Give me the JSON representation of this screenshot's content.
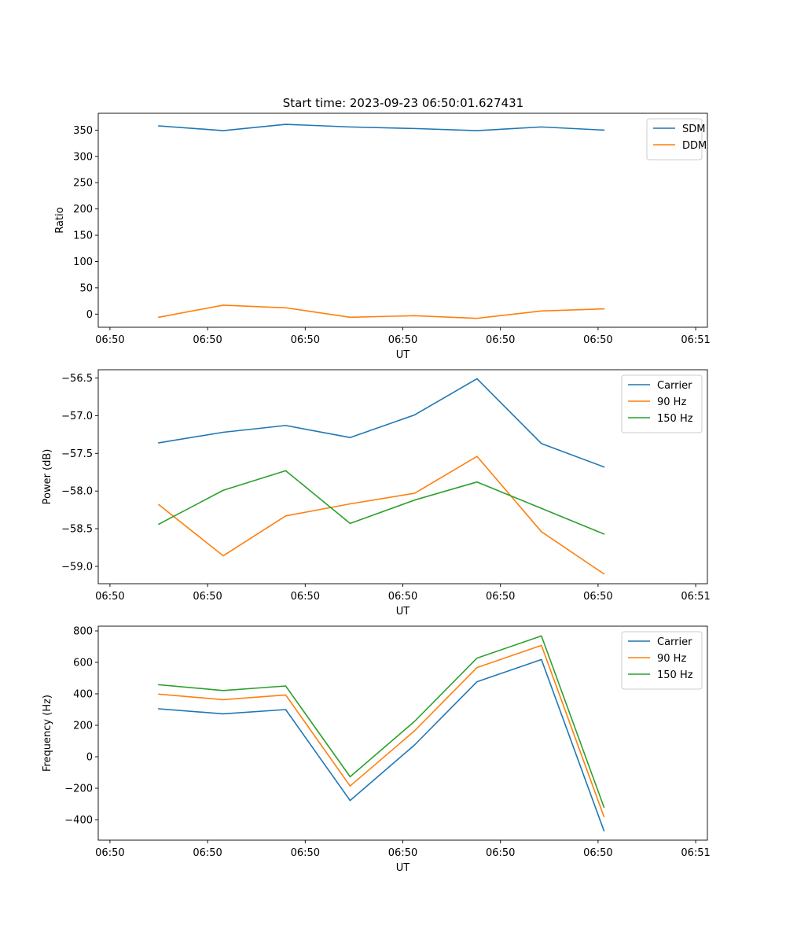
{
  "figure_title": "Start time: 2023-09-23 06:50:01.627431",
  "chart_data": [
    {
      "type": "line",
      "title": "Start time: 2023-09-23 06:50:01.627431",
      "xlabel": "UT",
      "ylabel": "Ratio",
      "x": [
        0.5,
        1.16,
        1.8,
        2.46,
        3.12,
        3.76,
        4.42,
        5.06
      ],
      "x_range": [
        -0.12,
        6.12
      ],
      "x_ticks": [
        0,
        1,
        2,
        3,
        4,
        5,
        6
      ],
      "x_tick_labels": [
        "06:50",
        "06:50",
        "06:50",
        "06:50",
        "06:50",
        "06:50",
        "06:51"
      ],
      "ylim": [
        -25,
        382
      ],
      "y_ticks": [
        0,
        50,
        100,
        150,
        200,
        250,
        300,
        350
      ],
      "y_tick_labels": [
        "0",
        "50",
        "100",
        "150",
        "200",
        "250",
        "300",
        "350"
      ],
      "legend_position": "top-right",
      "series": [
        {
          "name": "SDM",
          "color": "#1f77b4",
          "values": [
            358,
            349,
            361,
            356,
            353,
            349,
            356,
            350
          ]
        },
        {
          "name": "DDM",
          "color": "#ff7f0e",
          "values": [
            -6,
            17,
            12,
            -6,
            -3,
            -8,
            6,
            10
          ]
        }
      ]
    },
    {
      "type": "line",
      "title": "",
      "xlabel": "UT",
      "ylabel": "Power (dB)",
      "x": [
        0.5,
        1.16,
        1.8,
        2.46,
        3.12,
        3.76,
        4.42,
        5.06
      ],
      "x_range": [
        -0.12,
        6.12
      ],
      "x_ticks": [
        0,
        1,
        2,
        3,
        4,
        5,
        6
      ],
      "x_tick_labels": [
        "06:50",
        "06:50",
        "06:50",
        "06:50",
        "06:50",
        "06:50",
        "06:51"
      ],
      "ylim": [
        -59.23,
        -56.39
      ],
      "y_ticks": [
        -59.0,
        -58.5,
        -58.0,
        -57.5,
        -57.0,
        -56.5
      ],
      "y_tick_labels": [
        "−59.0",
        "−58.5",
        "−58.0",
        "−57.5",
        "−57.0",
        "−56.5"
      ],
      "legend_position": "top-right",
      "series": [
        {
          "name": "Carrier",
          "color": "#1f77b4",
          "values": [
            -57.36,
            -57.22,
            -57.13,
            -57.29,
            -56.99,
            -56.51,
            -57.37,
            -57.68
          ]
        },
        {
          "name": "90 Hz",
          "color": "#ff7f0e",
          "values": [
            -58.18,
            -58.86,
            -58.33,
            -58.17,
            -58.03,
            -57.54,
            -58.54,
            -59.1
          ]
        },
        {
          "name": "150 Hz",
          "color": "#2ca02c",
          "values": [
            -58.44,
            -57.99,
            -57.73,
            -58.43,
            -58.12,
            -57.88,
            -58.23,
            -58.57
          ]
        }
      ]
    },
    {
      "type": "line",
      "title": "",
      "xlabel": "UT",
      "ylabel": "Frequency (Hz)",
      "x": [
        0.5,
        1.16,
        1.8,
        2.46,
        3.12,
        3.76,
        4.42,
        5.06
      ],
      "x_range": [
        -0.12,
        6.12
      ],
      "x_ticks": [
        0,
        1,
        2,
        3,
        4,
        5,
        6
      ],
      "x_tick_labels": [
        "06:50",
        "06:50",
        "06:50",
        "06:50",
        "06:50",
        "06:50",
        "06:51"
      ],
      "ylim": [
        -530,
        830
      ],
      "y_ticks": [
        -400,
        -200,
        0,
        200,
        400,
        600,
        800
      ],
      "y_tick_labels": [
        "−400",
        "−200",
        "0",
        "200",
        "400",
        "600",
        "800"
      ],
      "legend_position": "top-right",
      "series": [
        {
          "name": "Carrier",
          "color": "#1f77b4",
          "values": [
            305,
            273,
            300,
            -278,
            75,
            477,
            618,
            -470
          ]
        },
        {
          "name": "90 Hz",
          "color": "#ff7f0e",
          "values": [
            398,
            363,
            393,
            -186,
            165,
            567,
            708,
            -380
          ]
        },
        {
          "name": "150 Hz",
          "color": "#2ca02c",
          "values": [
            458,
            421,
            450,
            -127,
            225,
            627,
            768,
            -320
          ]
        }
      ]
    }
  ]
}
